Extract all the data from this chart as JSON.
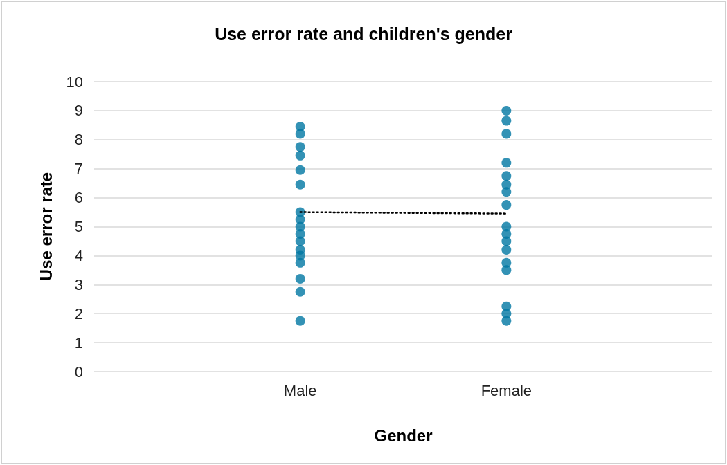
{
  "chart_data": {
    "type": "scatter",
    "title": "Use error rate and children's gender",
    "xlabel": "Gender",
    "ylabel": "Use error rate",
    "categories": [
      "Male",
      "Female"
    ],
    "series": [
      {
        "color": "#0077a3",
        "x": [
          "Male",
          "Male",
          "Male",
          "Male",
          "Male",
          "Male",
          "Male",
          "Male",
          "Male",
          "Male",
          "Male",
          "Male",
          "Male",
          "Male",
          "Male",
          "Male",
          "Male"
        ],
        "values": [
          8.45,
          8.2,
          7.75,
          7.45,
          6.95,
          6.45,
          5.5,
          5.25,
          5,
          4.75,
          4.5,
          4.2,
          4,
          3.75,
          3.2,
          2.75,
          1.75
        ]
      },
      {
        "color": "#0077a3",
        "x": [
          "Female",
          "Female",
          "Female",
          "Female",
          "Female",
          "Female",
          "Female",
          "Female",
          "Female",
          "Female",
          "Female",
          "Female",
          "Female",
          "Female",
          "Female",
          "Female",
          "Female"
        ],
        "values": [
          9,
          8.65,
          8.2,
          7.2,
          6.75,
          6.45,
          6.2,
          5.75,
          5,
          4.75,
          4.5,
          4.2,
          3.75,
          3.5,
          2.25,
          2,
          1.75
        ]
      },
      {
        "type": "line",
        "color": "#000000",
        "line_style": "dotted",
        "marker": "none",
        "values": [
          5.5,
          5.45
        ]
      }
    ],
    "ylim": [
      0,
      10
    ],
    "yticks": [
      0,
      1,
      2,
      3,
      4,
      5,
      6,
      7,
      8,
      9,
      10
    ],
    "grid": "y",
    "marker": "circle"
  }
}
